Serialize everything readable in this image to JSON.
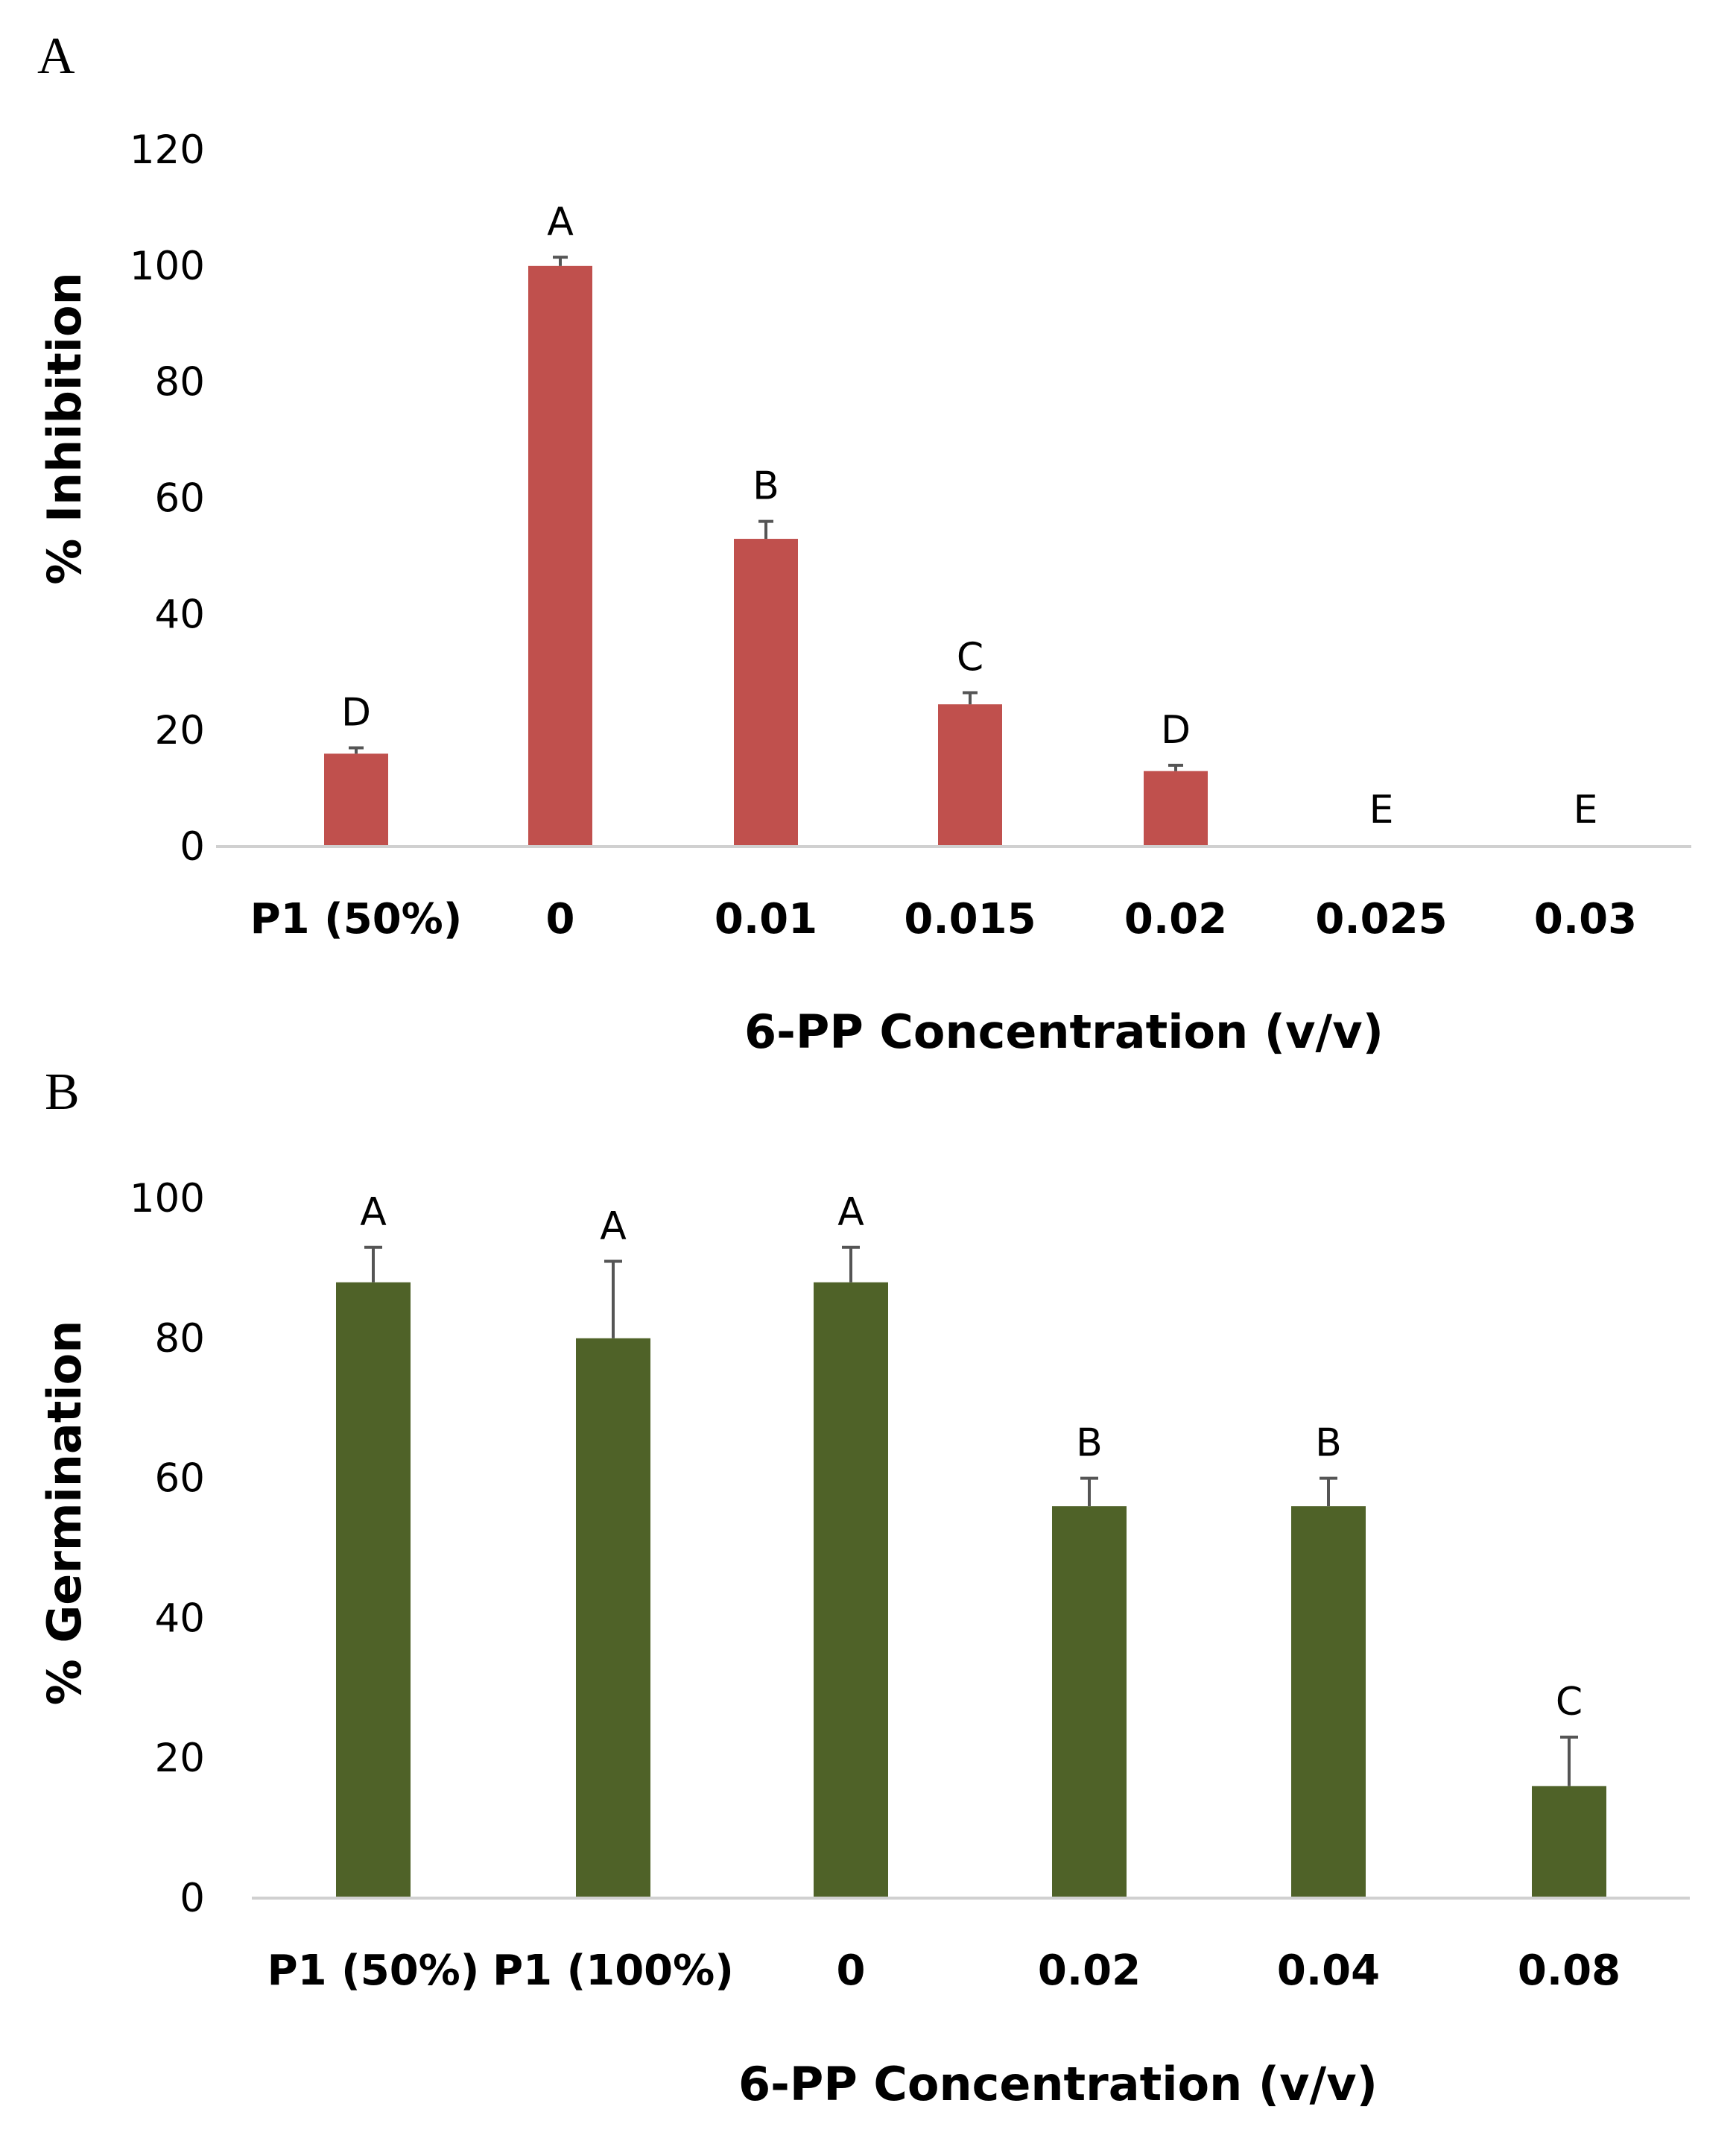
{
  "chart_data": [
    {
      "type": "bar",
      "panel_label": "A",
      "ylabel": "% Inhibition",
      "xlabel": "6-PP Concentration (v/v)",
      "ylim": [
        0,
        120
      ],
      "yticks": [
        "0",
        "20",
        "40",
        "60",
        "80",
        "100",
        "120"
      ],
      "categories": [
        "P1 (50%)",
        "0",
        "0.01",
        "0.015",
        "0.02",
        "0.025",
        "0.03"
      ],
      "values": [
        16,
        100,
        53,
        24.5,
        13,
        0,
        0
      ],
      "errors": [
        1,
        1.5,
        3,
        2,
        1,
        0,
        0
      ],
      "significance_labels": [
        "D",
        "A",
        "B",
        "C",
        "D",
        "E",
        "E"
      ],
      "bar_color": "#c0504d",
      "grid": false
    },
    {
      "type": "bar",
      "panel_label": "B",
      "ylabel": "% Germination",
      "xlabel": "6-PP Concentration (v/v)",
      "ylim": [
        0,
        100
      ],
      "yticks": [
        "0",
        "20",
        "40",
        "60",
        "80",
        "100"
      ],
      "categories": [
        "P1 (50%)",
        "P1 (100%)",
        "0",
        "0.02",
        "0.04",
        "0.08"
      ],
      "values": [
        88,
        80,
        88,
        56,
        56,
        16
      ],
      "errors": [
        5,
        11,
        5,
        4,
        4,
        7
      ],
      "significance_labels": [
        "A",
        "A",
        "A",
        "B",
        "B",
        "C"
      ],
      "bar_color": "#4f6228",
      "grid": false
    }
  ]
}
